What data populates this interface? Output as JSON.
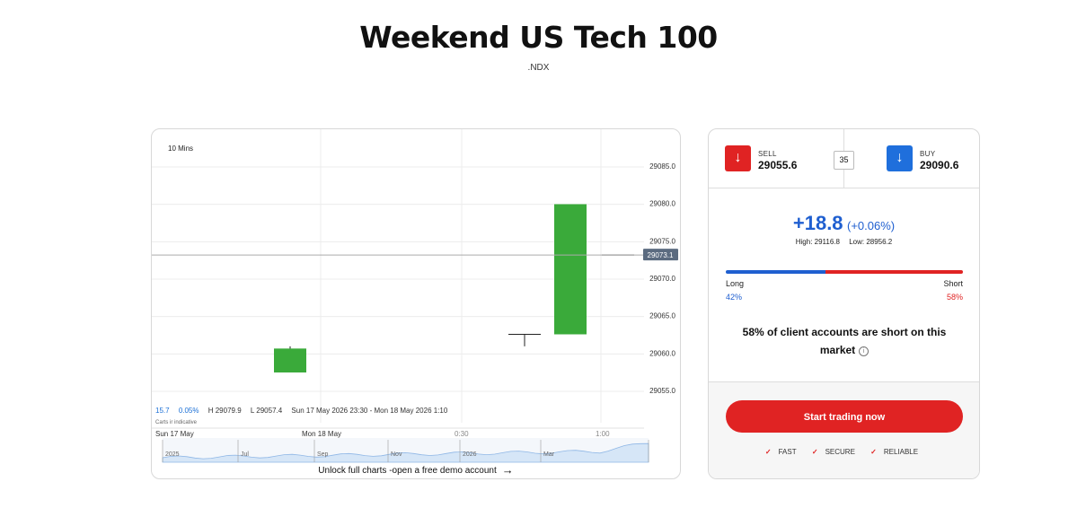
{
  "header": {
    "title": "Weekend US Tech 100",
    "symbol": ".NDX"
  },
  "chart": {
    "interval": "10 Mins",
    "y_ticks": [
      "29085.0",
      "29080.0",
      "29075.0",
      "29070.0",
      "29065.0",
      "29060.0",
      "29055.0"
    ],
    "current_price_tag": "29073.1",
    "stats": {
      "change": "15.7",
      "change_pct": "0.05%",
      "high": "H 29079.9",
      "low": "L 29057.4",
      "range": "Sun 17 May 2026 23:30 - Mon 18 May 2026 1:10"
    },
    "indicative_note": "Carts ir indicative",
    "time_labels": [
      "Sun 17 May",
      "Mon 18 May",
      "0:30",
      "1:00"
    ],
    "navigator_labels": [
      "2025",
      "Jul",
      "Sep",
      "Nov",
      "2026",
      "Mar"
    ],
    "unlock_text": "Unlock full charts -open a free demo account",
    "colors": {
      "up": "#3aaa3a",
      "grid": "#ececec",
      "tag": "#5b6b80"
    }
  },
  "chart_data": {
    "type": "candlestick",
    "ylim": [
      29053,
      29087
    ],
    "candles": [
      {
        "open": 29057.4,
        "high": 29060.9,
        "low": 29057.4,
        "close": 29060.6
      },
      {
        "open": 29062.5,
        "high": 29062.5,
        "low": 29060.9,
        "close": 29062.5
      },
      {
        "open": 29062.5,
        "high": 29079.9,
        "low": 29062.5,
        "close": 29079.9
      },
      {
        "open": 29073.1,
        "high": 29073.1,
        "low": 29073.1,
        "close": 29073.1
      }
    ],
    "current": 29073.1
  },
  "trade": {
    "sell_label": "SELL",
    "sell_price": "29055.6",
    "spread": "35",
    "buy_label": "BUY",
    "buy_price": "29090.6",
    "change_value": "+18.8",
    "change_pct": "(+0.06%)",
    "high": "High: 29116.8",
    "low": "Low: 28956.2",
    "long_label": "Long",
    "short_label": "Short",
    "long_pct": "42%",
    "short_pct": "58%",
    "long_fraction": 0.42,
    "client_text": "58% of client accounts are short on this market",
    "cta": "Start trading now",
    "features": [
      "FAST",
      "SECURE",
      "RELIABLE"
    ],
    "colors": {
      "sell": "#e02323",
      "buy": "#1f6fdc"
    }
  }
}
